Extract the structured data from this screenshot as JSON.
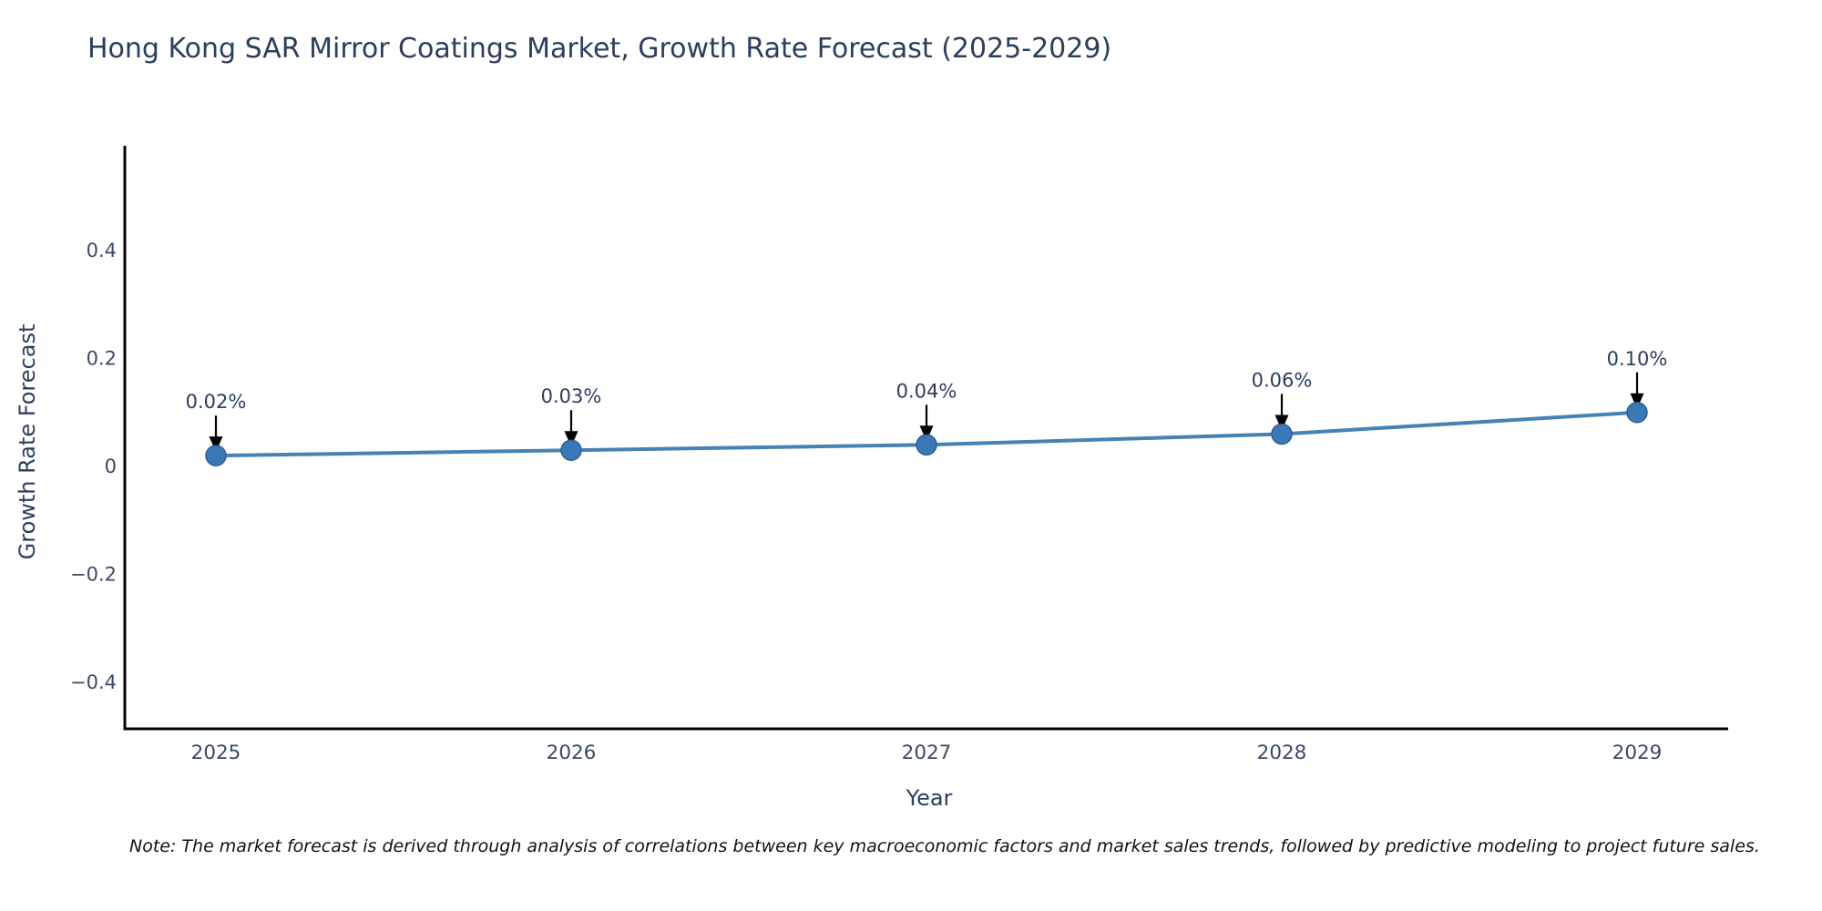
{
  "chart_data": {
    "type": "line",
    "title": "Hong Kong SAR Mirror Coatings Market, Growth Rate Forecast (2025-2029)",
    "xlabel": "Year",
    "ylabel": "Growth Rate Forecast",
    "x": [
      2025,
      2026,
      2027,
      2028,
      2029
    ],
    "y": [
      0.02,
      0.03,
      0.04,
      0.06,
      0.1
    ],
    "point_labels": [
      "0.02%",
      "0.03%",
      "0.04%",
      "0.06%",
      "0.10%"
    ],
    "x_tick_labels": [
      "2025",
      "2026",
      "2027",
      "2028",
      "2029"
    ],
    "y_ticks": [
      0.4,
      0.2,
      0,
      -0.2,
      -0.4
    ],
    "y_tick_labels": [
      "0.4",
      "0.2",
      "0",
      "−0.2",
      "−0.4"
    ],
    "ylim": [
      -0.49,
      0.59
    ],
    "grid": false,
    "legend": "none",
    "line_color": "#4682b4",
    "marker_color": "#3a79b6",
    "marker_edge_color": "#2e6094",
    "axis_color": "#000000",
    "tick_color": "#3b4a63",
    "annotation_color": "#2b3e5c",
    "arrow_color": "#000000"
  },
  "note": {
    "text": "Note: The market forecast is derived through analysis of correlations between key macroeconomic factors and market sales trends, followed by predictive modeling to project future sales."
  }
}
